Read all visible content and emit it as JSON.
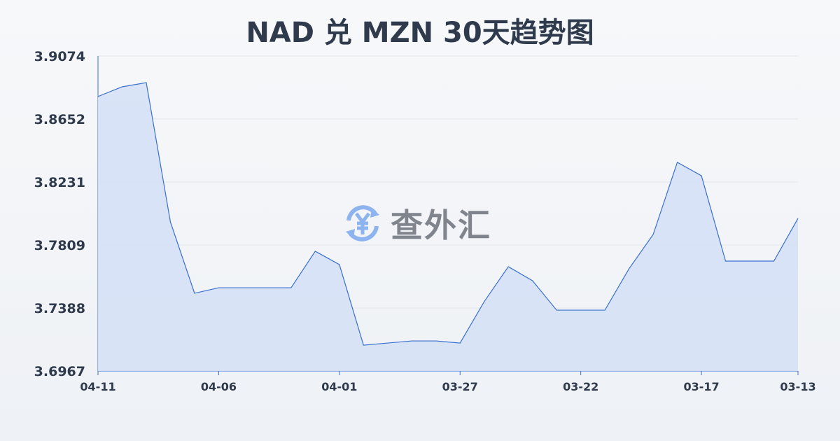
{
  "chart_data": {
    "type": "area",
    "title": "NAD 兑 MZN 30天趋势图",
    "xlabel": "",
    "ylabel": "",
    "ylim": [
      3.6967,
      3.9074
    ],
    "yticks": [
      "3.9074",
      "3.8652",
      "3.8231",
      "3.7809",
      "3.7388",
      "3.6967"
    ],
    "xticks": [
      "04-11",
      "04-06",
      "04-01",
      "03-27",
      "03-22",
      "03-17",
      "03-13"
    ],
    "grid": true,
    "x": [
      "04-11",
      "04-10",
      "04-09",
      "04-08",
      "04-07",
      "04-06",
      "04-05",
      "04-04",
      "04-03",
      "04-02",
      "04-01",
      "03-31",
      "03-30",
      "03-29",
      "03-28",
      "03-27",
      "03-26",
      "03-25",
      "03-24",
      "03-23",
      "03-22",
      "03-21",
      "03-20",
      "03-19",
      "03-18",
      "03-17",
      "03-16",
      "03-15",
      "03-14",
      "03-13"
    ],
    "series": [
      {
        "values": [
          3.8803,
          3.8868,
          3.8896,
          3.7964,
          3.7487,
          3.7524,
          3.7524,
          3.7524,
          3.7524,
          3.7768,
          3.7679,
          3.714,
          3.7154,
          3.7168,
          3.7168,
          3.7154,
          3.7431,
          3.7665,
          3.7571,
          3.7374,
          3.7374,
          3.7374,
          3.7651,
          3.788,
          3.8363,
          3.8273,
          3.7702,
          3.7702,
          3.7702,
          3.7988
        ]
      }
    ],
    "colors": {
      "line": "#3a6fd0",
      "fill": "#d6e1f6",
      "grid": "#e3e6ea"
    }
  },
  "watermark": {
    "text": "查外汇",
    "icon": "yen-exchange-icon"
  }
}
